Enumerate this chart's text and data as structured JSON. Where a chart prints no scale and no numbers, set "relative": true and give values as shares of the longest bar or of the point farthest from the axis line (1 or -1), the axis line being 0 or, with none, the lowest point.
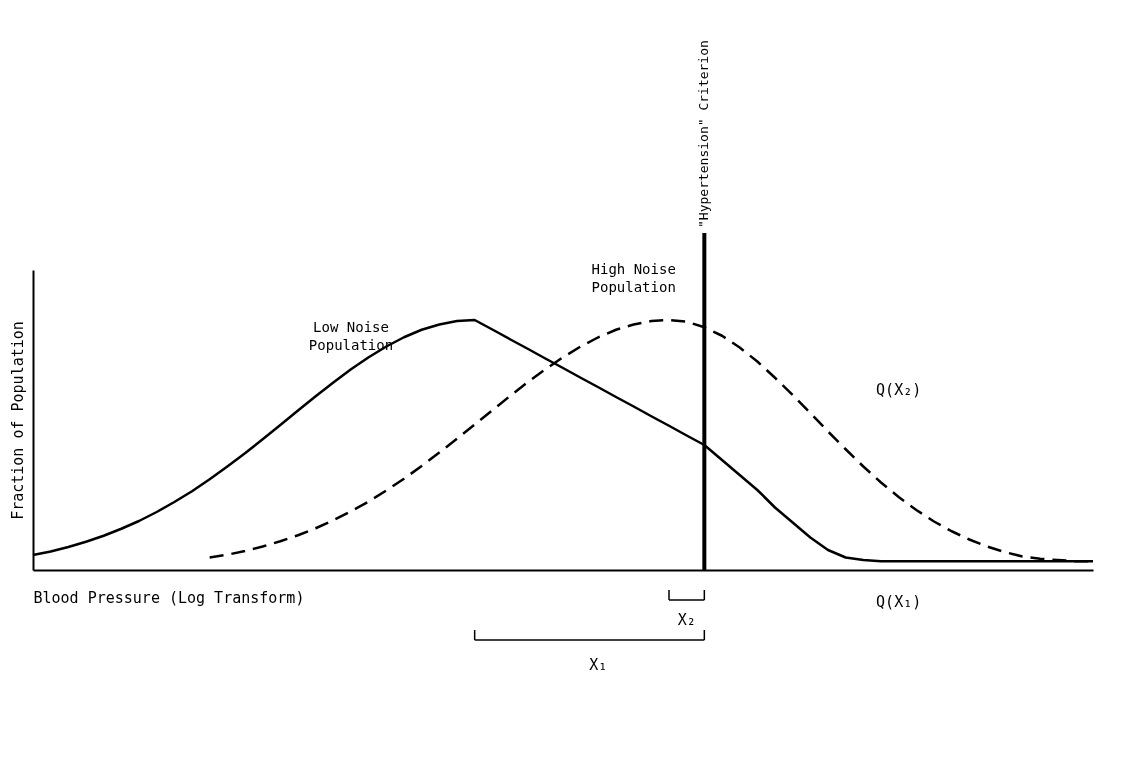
{
  "chart_data": {
    "type": "line",
    "relative": true,
    "xlabel": "Blood Pressure (Log Transform)",
    "ylabel": "Fraction of Population",
    "grid": false,
    "categories": [
      null,
      null,
      null,
      null,
      null,
      null,
      null,
      null,
      null,
      null,
      null,
      null,
      null,
      null,
      null,
      null,
      null,
      null,
      null,
      null,
      null,
      null,
      null,
      null,
      null,
      null,
      null,
      null,
      null,
      null,
      null,
      null,
      null,
      null,
      null,
      null,
      null,
      null,
      null,
      null,
      null,
      null,
      null,
      null,
      null,
      null,
      null,
      null,
      null,
      null,
      null,
      null,
      null,
      null,
      null,
      null,
      null,
      null,
      null,
      null,
      null
    ],
    "series": [
      {
        "name": "Low Noise Population",
        "color": "#000000",
        "line_style": "solid",
        "values": [
          0.06,
          0.074,
          0.092,
          0.113,
          0.137,
          0.165,
          0.196,
          0.232,
          0.272,
          0.315,
          0.363,
          0.414,
          0.467,
          0.523,
          0.58,
          0.638,
          0.695,
          0.75,
          0.803,
          0.851,
          0.894,
          0.931,
          0.961,
          0.982,
          0.996,
          1.0,
          0.962,
          0.923,
          0.885,
          0.846,
          0.808,
          0.769,
          0.731,
          0.692,
          0.654,
          0.615,
          0.577,
          0.538,
          0.5,
          0.44,
          0.38,
          0.32,
          0.25,
          0.19,
          0.13,
          0.08,
          0.05,
          0.04,
          0.035,
          0.035,
          0.035,
          0.035,
          0.035,
          0.035,
          0.035,
          0.035,
          0.035,
          0.035,
          0.035,
          0.035,
          0.035
        ]
      },
      {
        "name": "High Noise Population",
        "color": "#000000",
        "line_style": "dashed",
        "values": [
          null,
          null,
          null,
          null,
          null,
          null,
          null,
          null,
          null,
          null,
          0.05,
          0.061,
          0.076,
          0.094,
          0.115,
          0.139,
          0.167,
          0.199,
          0.235,
          0.274,
          0.318,
          0.365,
          0.416,
          0.47,
          0.525,
          0.582,
          0.639,
          0.696,
          0.751,
          0.803,
          0.851,
          0.894,
          0.931,
          0.961,
          0.982,
          0.996,
          1.0,
          0.993,
          0.971,
          0.937,
          0.89,
          0.834,
          0.769,
          0.7,
          0.628,
          0.554,
          0.483,
          0.414,
          0.35,
          0.292,
          0.24,
          0.194,
          0.155,
          0.122,
          0.094,
          0.072,
          0.054,
          0.045,
          0.04,
          0.035,
          0.035
        ]
      }
    ],
    "annotations": [
      "\"Hypertension\" Criterion",
      "X₁",
      "X₂",
      "Q(X₁)",
      "Q(X₂)"
    ]
  }
}
